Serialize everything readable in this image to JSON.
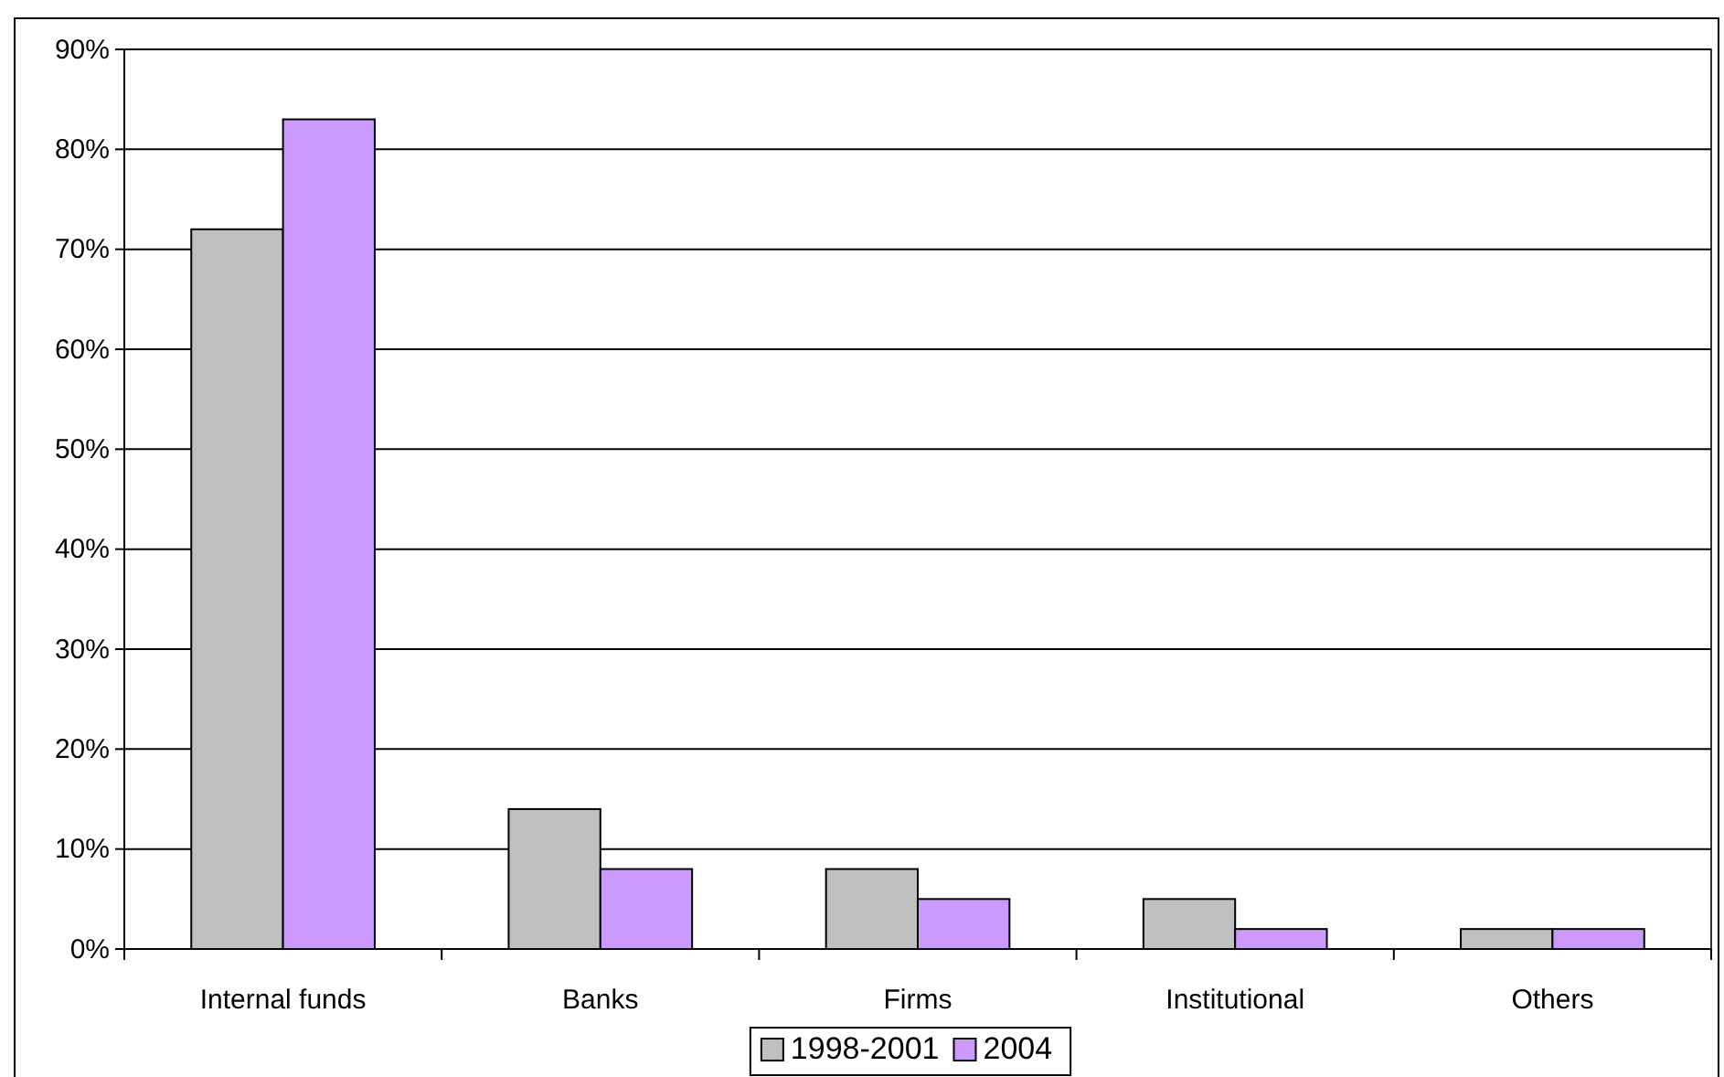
{
  "chart_data": {
    "type": "bar",
    "categories": [
      "Internal funds",
      "Banks",
      "Firms",
      "Institutional",
      "Others"
    ],
    "series": [
      {
        "name": "1998-2001",
        "color": "#c0c0c0",
        "values": [
          72,
          14,
          8,
          5,
          2
        ]
      },
      {
        "name": "2004",
        "color": "#cc99ff",
        "values": [
          83,
          8,
          5,
          2,
          2
        ]
      }
    ],
    "ylim": [
      0,
      90
    ],
    "yticks": [
      {
        "value": 0,
        "label": "0%"
      },
      {
        "value": 10,
        "label": "10%"
      },
      {
        "value": 20,
        "label": "20%"
      },
      {
        "value": 30,
        "label": "30%"
      },
      {
        "value": 40,
        "label": "40%"
      },
      {
        "value": 50,
        "label": "50%"
      },
      {
        "value": 60,
        "label": "60%"
      },
      {
        "value": 70,
        "label": "70%"
      },
      {
        "value": 80,
        "label": "80%"
      },
      {
        "value": 90,
        "label": "90%"
      }
    ],
    "grid": "y",
    "legend": "bottom"
  }
}
